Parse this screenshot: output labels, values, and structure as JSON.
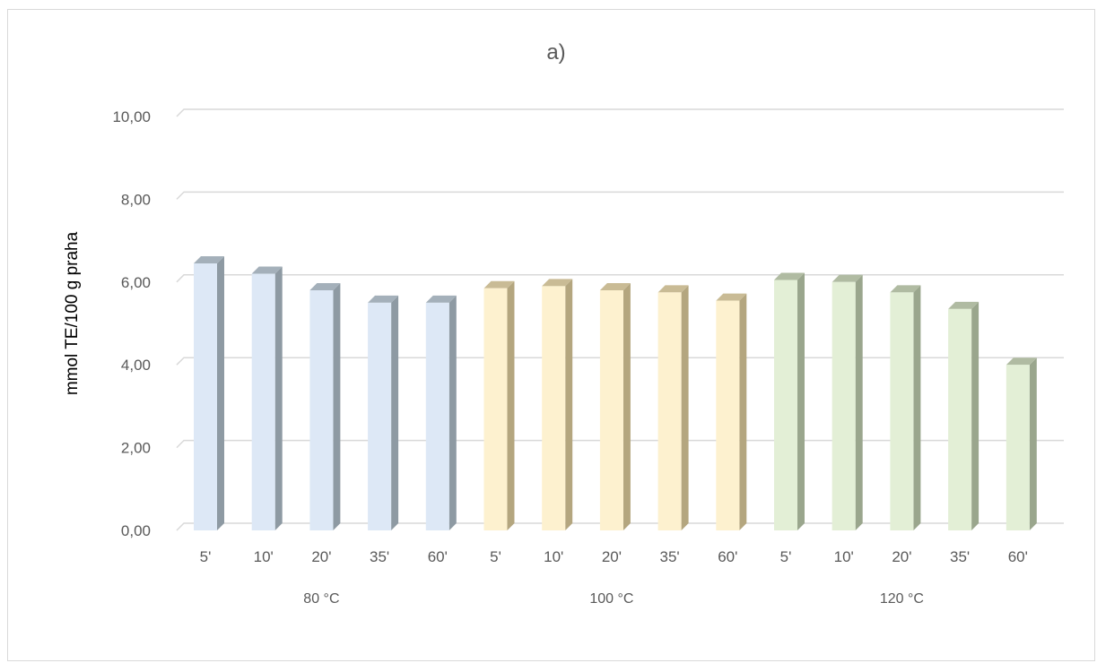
{
  "chart_data": {
    "type": "bar",
    "title": "a)",
    "ylabel": "mmol TE/100 g praha",
    "xlabel": "",
    "ylim": [
      0,
      10
    ],
    "yticks": [
      "0,00",
      "2,00",
      "4,00",
      "6,00",
      "8,00",
      "10,00"
    ],
    "grid": true,
    "legend": "none",
    "categories": [
      "5'",
      "10'",
      "20'",
      "35'",
      "60'",
      "5'",
      "10'",
      "20'",
      "35'",
      "60'",
      "5'",
      "10'",
      "20'",
      "35'",
      "60'"
    ],
    "groups": [
      {
        "label": "80 °C",
        "values": [
          6.45,
          6.2,
          5.8,
          5.5,
          5.5
        ],
        "color": "#dde8f6",
        "side": "#8e9aa3",
        "top": "#a4b0ba"
      },
      {
        "label": "100 °C",
        "values": [
          5.85,
          5.9,
          5.8,
          5.75,
          5.55
        ],
        "color": "#fdf1cf",
        "side": "#b4a67f",
        "top": "#c9bb95"
      },
      {
        "label": "120 °C",
        "values": [
          6.05,
          6.0,
          5.75,
          5.35,
          4.0
        ],
        "color": "#e3efd6",
        "side": "#9aa68d",
        "top": "#b0bba2"
      }
    ]
  }
}
